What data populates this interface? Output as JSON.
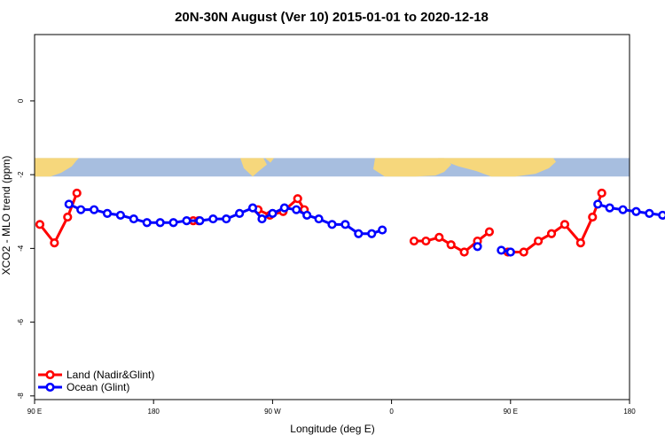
{
  "chart_data": {
    "type": "line",
    "title": "20N-30N August (Ver 10)   2015-01-01 to 2020-12-18",
    "xlabel": "Longitude (deg E)",
    "ylabel": "XCO2 - MLO trend (ppm)",
    "xlim": [
      90,
      540
    ],
    "ylim": [
      -8.1,
      1.8
    ],
    "xticks": [
      {
        "value": 90,
        "label": "90 E"
      },
      {
        "value": 180,
        "label": "180"
      },
      {
        "value": 270,
        "label": "90 W"
      },
      {
        "value": 360,
        "label": "0"
      },
      {
        "value": 450,
        "label": "90 E"
      },
      {
        "value": 540,
        "label": "180"
      }
    ],
    "yticks": [
      {
        "value": 0,
        "label": "0"
      },
      {
        "value": -2,
        "label": "-2"
      },
      {
        "value": -4,
        "label": "-4"
      },
      {
        "value": -6,
        "label": "-6"
      },
      {
        "value": -8,
        "label": "-8"
      }
    ],
    "map_strip": {
      "y_top": -1.55,
      "y_bottom": -2.05,
      "ocean_color": "#a7bedf",
      "land_color": "#f6d77c"
    },
    "series": [
      {
        "name": "Land (Nadir&Glint)",
        "color": "#ff0000",
        "segments": [
          [
            [
              94,
              -3.35
            ],
            [
              105,
              -3.85
            ],
            [
              115,
              -3.15
            ],
            [
              122,
              -2.5
            ]
          ],
          [
            [
              210,
              -3.25
            ],
            [
              214,
              -3.25
            ]
          ],
          [
            [
              259,
              -2.95
            ],
            [
              268,
              -3.1
            ],
            [
              278,
              -3.0
            ],
            [
              289,
              -2.65
            ],
            [
              294,
              -2.95
            ]
          ],
          [
            [
              377,
              -3.8
            ],
            [
              386,
              -3.8
            ],
            [
              396,
              -3.7
            ],
            [
              405,
              -3.9
            ],
            [
              415,
              -4.1
            ],
            [
              425,
              -3.8
            ],
            [
              434,
              -3.55
            ]
          ],
          [
            [
              448,
              -4.1
            ],
            [
              460,
              -4.1
            ],
            [
              471,
              -3.8
            ],
            [
              481,
              -3.6
            ],
            [
              491,
              -3.35
            ],
            [
              503,
              -3.85
            ],
            [
              512,
              -3.15
            ],
            [
              519,
              -2.5
            ]
          ]
        ]
      },
      {
        "name": "Ocean (Glint)",
        "color": "#0000ff",
        "segments": [
          [
            [
              116,
              -2.8
            ],
            [
              125,
              -2.95
            ],
            [
              135,
              -2.95
            ],
            [
              145,
              -3.05
            ],
            [
              155,
              -3.1
            ],
            [
              165,
              -3.2
            ],
            [
              175,
              -3.3
            ],
            [
              185,
              -3.3
            ],
            [
              195,
              -3.3
            ],
            [
              205,
              -3.25
            ],
            [
              215,
              -3.25
            ],
            [
              225,
              -3.2
            ],
            [
              235,
              -3.2
            ],
            [
              245,
              -3.05
            ],
            [
              255,
              -2.9
            ],
            [
              262,
              -3.2
            ],
            [
              270,
              -3.05
            ],
            [
              279,
              -2.9
            ],
            [
              288,
              -2.95
            ],
            [
              296,
              -3.1
            ],
            [
              305,
              -3.2
            ],
            [
              315,
              -3.35
            ],
            [
              325,
              -3.35
            ],
            [
              335,
              -3.6
            ],
            [
              345,
              -3.6
            ],
            [
              353,
              -3.5
            ]
          ],
          [
            [
              425,
              -3.95
            ]
          ],
          [
            [
              443,
              -4.05
            ],
            [
              450,
              -4.1
            ]
          ],
          [
            [
              516,
              -2.8
            ],
            [
              525,
              -2.9
            ],
            [
              535,
              -2.95
            ],
            [
              545,
              -3.0
            ],
            [
              555,
              -3.05
            ],
            [
              565,
              -3.1
            ],
            [
              575,
              -3.2
            ],
            [
              585,
              -3.3
            ]
          ]
        ]
      }
    ],
    "legend": {
      "position": "bottom-left",
      "entries": [
        "Land (Nadir&Glint)",
        "Ocean (Glint)"
      ]
    }
  }
}
